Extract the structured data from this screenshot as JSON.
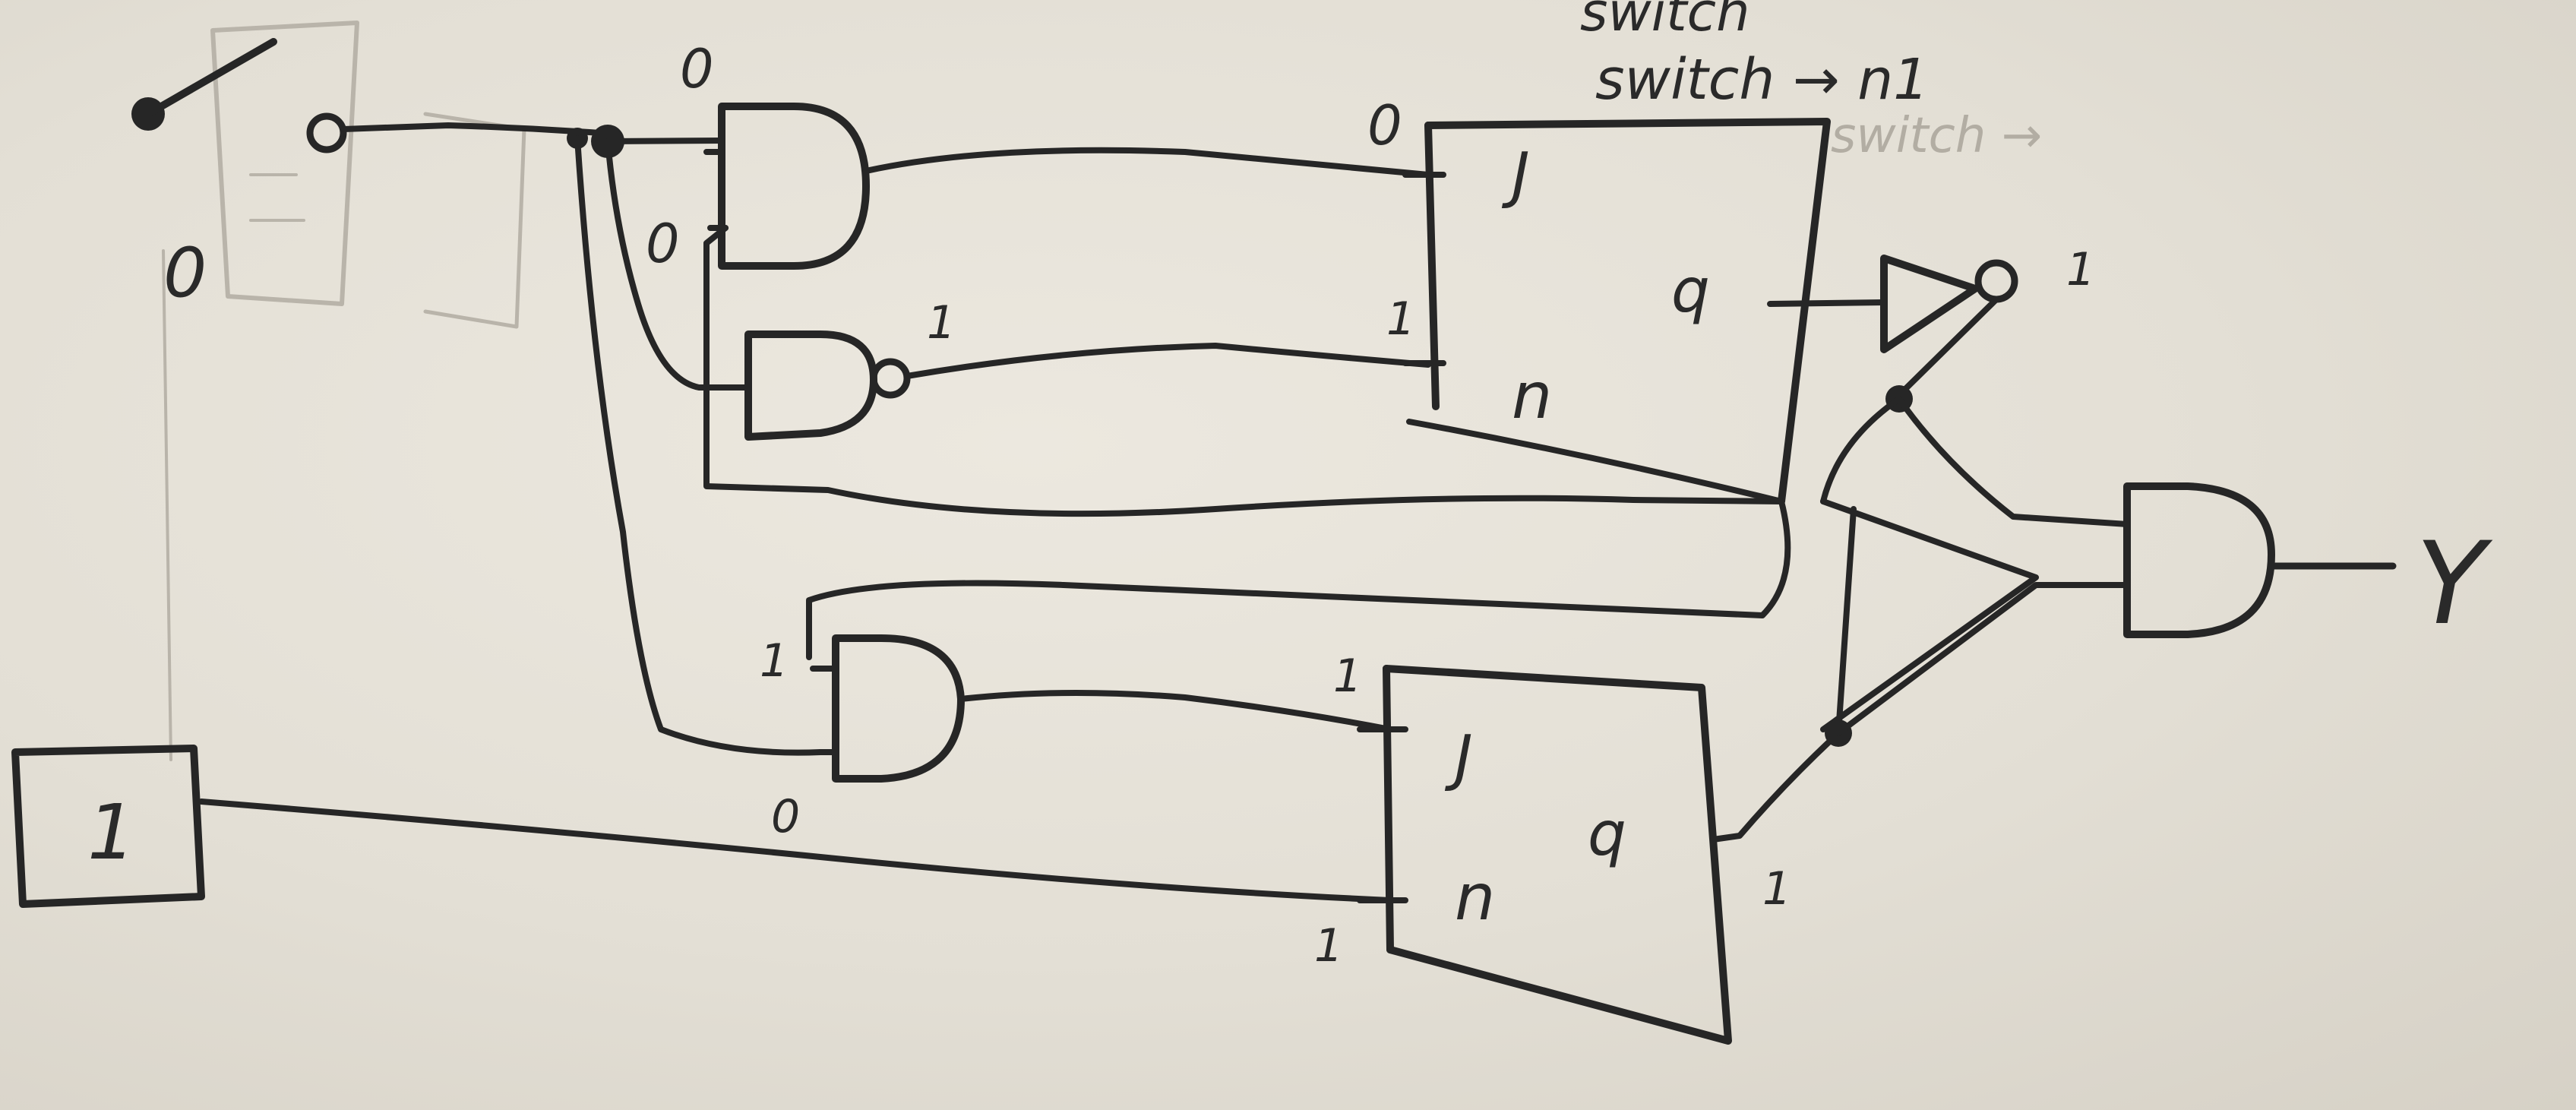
{
  "notes": {
    "line1": "switch",
    "line2": "switch → n1",
    "line3": "switch →"
  },
  "input": {
    "constant_label": "1",
    "switch_level": "0"
  },
  "gates": {
    "and_top": {
      "in_a": "0",
      "in_b": "0"
    },
    "nand": {
      "out": "1"
    },
    "and_bottom": {
      "in_a": "1",
      "in_b": "0"
    },
    "not": {
      "out": "1"
    }
  },
  "flipflop_top": {
    "j_label": "J",
    "k_label": "n",
    "q_label": "q",
    "j_level": "0",
    "k_level": "1"
  },
  "flipflop_bottom": {
    "j_label": "J",
    "k_label": "n",
    "q_label": "q",
    "j_level": "1",
    "k_level": "1",
    "q_level": "1"
  },
  "output": {
    "label": "Y"
  }
}
